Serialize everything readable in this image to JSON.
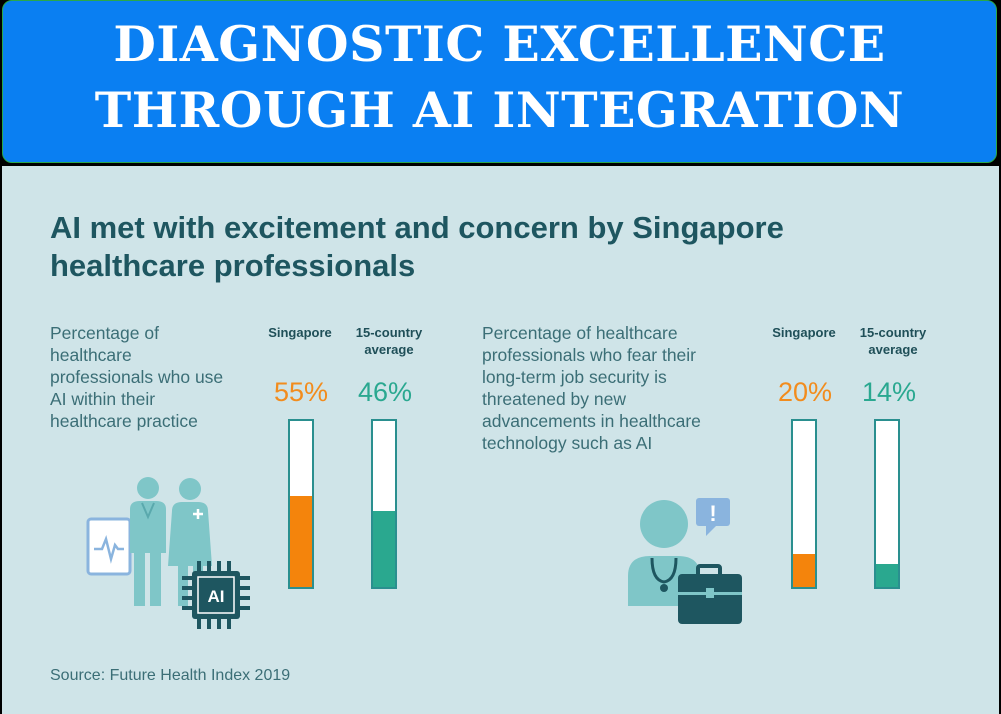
{
  "banner": {
    "title": "DIAGNOSTIC EXCELLENCE THROUGH AI INTEGRATION"
  },
  "headline": "AI met with excitement and concern by Singapore healthcare professionals",
  "source": "Source: Future Health Index 2019",
  "colors": {
    "singapore": "#f4840c",
    "average": "#2aa88f",
    "bar_border": "#2a8f8f",
    "banner": "#0a7ff2"
  },
  "icons": [
    "doctor-and-nurse-icon",
    "ecg-monitor-icon",
    "ai-chip-icon",
    "worried-doctor-icon",
    "alert-bubble-icon",
    "briefcase-icon"
  ],
  "chart_data": [
    {
      "type": "bar",
      "title": "Percentage of healthcare professionals who use AI within their healthcare practice",
      "categories": [
        "Singapore",
        "15-country average"
      ],
      "values": [
        55,
        46
      ],
      "value_labels": [
        "55%",
        "46%"
      ],
      "ylim": [
        0,
        100
      ]
    },
    {
      "type": "bar",
      "title": "Percentage of healthcare professionals who fear their long-term job security is threatened by new advancements in healthcare technology such as AI",
      "categories": [
        "Singapore",
        "15-country average"
      ],
      "values": [
        20,
        14
      ],
      "value_labels": [
        "20%",
        "14%"
      ],
      "ylim": [
        0,
        100
      ]
    }
  ],
  "ai_chip_label": "AI",
  "alert_mark": "!"
}
